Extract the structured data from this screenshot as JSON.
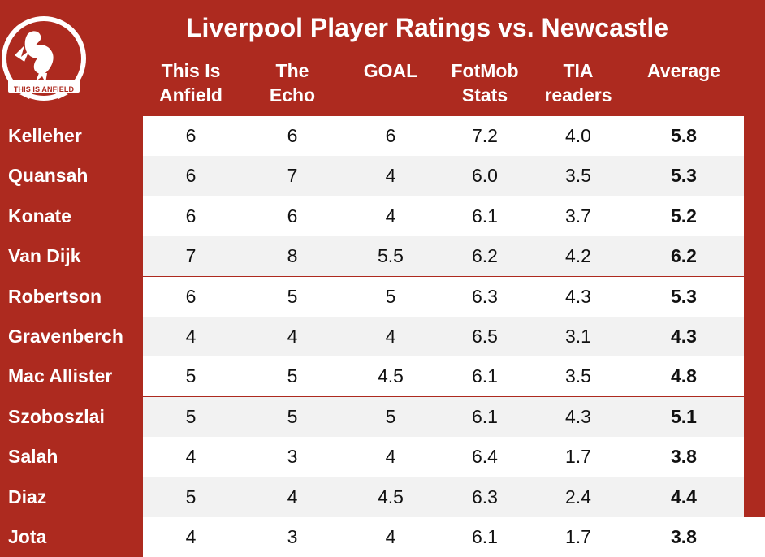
{
  "title": "Liverpool Player Ratings vs. Newcastle",
  "logo": {
    "text": "THIS IS ANFIELD",
    "icon": "liver-bird-icon"
  },
  "colors": {
    "background": "#ad2a1f",
    "header_text": "#ffffff",
    "row_odd": "#ffffff",
    "row_even": "#f2f2f2"
  },
  "chart_data": {
    "type": "table",
    "title": "Liverpool Player Ratings vs. Newcastle",
    "columns": [
      {
        "line1": "This Is",
        "line2": "Anfield"
      },
      {
        "line1": "The",
        "line2": "Echo"
      },
      {
        "line1": "GOAL",
        "line2": ""
      },
      {
        "line1": "FotMob",
        "line2": "Stats"
      },
      {
        "line1": "TIA",
        "line2": "readers"
      },
      {
        "line1": "Average",
        "line2": ""
      }
    ],
    "rows": [
      {
        "player": "Kelleher",
        "values": [
          "6",
          "6",
          "6",
          "7.2",
          "4.0",
          "5.8"
        ]
      },
      {
        "player": "Quansah",
        "values": [
          "6",
          "7",
          "4",
          "6.0",
          "3.5",
          "5.3"
        ]
      },
      {
        "player": "Konate",
        "values": [
          "6",
          "6",
          "4",
          "6.1",
          "3.7",
          "5.2"
        ]
      },
      {
        "player": "Van Dijk",
        "values": [
          "7",
          "8",
          "5.5",
          "6.2",
          "4.2",
          "6.2"
        ]
      },
      {
        "player": "Robertson",
        "values": [
          "6",
          "5",
          "5",
          "6.3",
          "4.3",
          "5.3"
        ]
      },
      {
        "player": "Gravenberch",
        "values": [
          "4",
          "4",
          "4",
          "6.5",
          "3.1",
          "4.3"
        ]
      },
      {
        "player": "Mac Allister",
        "values": [
          "5",
          "5",
          "4.5",
          "6.1",
          "3.5",
          "4.8"
        ]
      },
      {
        "player": "Szoboszlai",
        "values": [
          "5",
          "5",
          "5",
          "6.1",
          "4.3",
          "5.1"
        ]
      },
      {
        "player": "Salah",
        "values": [
          "4",
          "3",
          "4",
          "6.4",
          "1.7",
          "3.8"
        ]
      },
      {
        "player": "Diaz",
        "values": [
          "5",
          "4",
          "4.5",
          "6.3",
          "2.4",
          "4.4"
        ]
      },
      {
        "player": "Jota",
        "values": [
          "4",
          "3",
          "4",
          "6.1",
          "1.7",
          "3.8"
        ]
      }
    ]
  }
}
